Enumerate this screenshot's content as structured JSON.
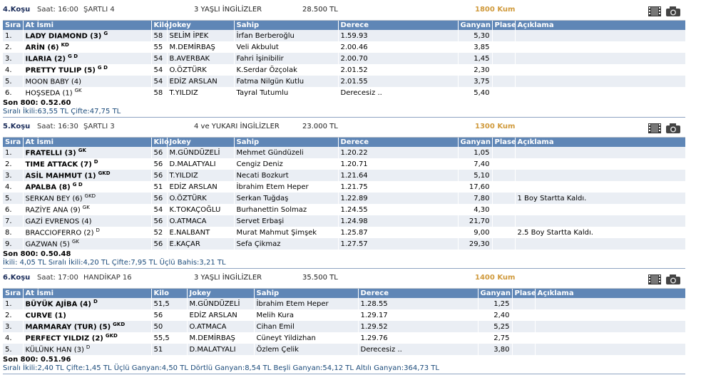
{
  "headers": [
    "Sıra",
    "At İsmi",
    "Kilo",
    "Jokey",
    "Sahip",
    "Derece",
    "Ganyan",
    "Plase",
    "Açıklama"
  ],
  "races": [
    {
      "no": "4.Koşu",
      "time": "Saat: 16:00",
      "cond": "ŞARTLI  4",
      "class": "3 YAŞLI İNGİLİZLER",
      "prize": "28.500 TL",
      "dist": "1800 Kum",
      "rows": [
        {
          "no": "1.",
          "horse": "LADY DIAMOND (3)",
          "hc": "G",
          "bold": true,
          "kilo": "58",
          "jockey": "SELİM İPEK",
          "owner": "İrfan Berberoğlu",
          "time": "1.59.93",
          "ganyan": "5,30",
          "plase": "",
          "note": ""
        },
        {
          "no": "2.",
          "horse": "ARİN (6)",
          "hc": "KD",
          "bold": true,
          "kilo": "55",
          "jockey": "M.DEMİRBAŞ",
          "owner": "Veli Akbulut",
          "time": "2.00.46",
          "ganyan": "3,85",
          "plase": "",
          "note": ""
        },
        {
          "no": "3.",
          "horse": "ILARIA (2)",
          "hc": "G D",
          "bold": true,
          "kilo": "54",
          "jockey": "B.AVERBAK",
          "owner": "Fahri İşinibilir",
          "time": "2.00.70",
          "ganyan": "1,45",
          "plase": "",
          "note": ""
        },
        {
          "no": "4.",
          "horse": "PRETTY TULIP (5)",
          "hc": "G D",
          "bold": true,
          "kilo": "54",
          "jockey": "O.ÖZTÜRK",
          "owner": "K.Serdar Özçolak",
          "time": "2.01.52",
          "ganyan": "2,30",
          "plase": "",
          "note": ""
        },
        {
          "no": "5.",
          "horse": "MOON BABY (4)",
          "hc": "",
          "bold": false,
          "kilo": "54",
          "jockey": "EDİZ ARSLAN",
          "owner": "Fatma Nilgün Kutlu",
          "time": "2.01.55",
          "ganyan": "3,75",
          "plase": "",
          "note": ""
        },
        {
          "no": "6.",
          "horse": "HOŞSEDA (1)",
          "hc": "GK",
          "bold": false,
          "kilo": "58",
          "jockey": "T.YILDIZ",
          "owner": "Tayral Tutumlu",
          "time": "Derecesiz ..",
          "ganyan": "5,40",
          "plase": "",
          "note": ""
        }
      ],
      "last800": "Son 800: 0.52.60",
      "bets": "Sıralı İkili:63,55 TL Çifte:47,75 TL"
    },
    {
      "no": "5.Koşu",
      "time": "Saat: 16:30",
      "cond": "ŞARTLI  3",
      "class": "4 ve YUKARI İNGİLİZLER",
      "prize": "23.000 TL",
      "dist": "1300 Kum",
      "rows": [
        {
          "no": "1.",
          "horse": "FRATELLI (3)",
          "hc": "GK",
          "bold": true,
          "kilo": "56",
          "jockey": "M.GÜNDÜZELİ",
          "owner": "Mehmet Gündüzeli",
          "time": "1.20.22",
          "ganyan": "1,05",
          "plase": "",
          "note": ""
        },
        {
          "no": "2.",
          "horse": "TIME ATTACK (7)",
          "hc": "D",
          "bold": true,
          "kilo": "56",
          "jockey": "D.MALATYALI",
          "owner": "Cengiz Deniz",
          "time": "1.20.71",
          "ganyan": "7,40",
          "plase": "",
          "note": ""
        },
        {
          "no": "3.",
          "horse": "ASİL MAHMUT (1)",
          "hc": "GKD",
          "bold": true,
          "kilo": "56",
          "jockey": "T.YILDIZ",
          "owner": "Necati Bozkurt",
          "time": "1.21.64",
          "ganyan": "5,10",
          "plase": "",
          "note": ""
        },
        {
          "no": "4.",
          "horse": "APALBA (8)",
          "hc": "G D",
          "bold": true,
          "kilo": "51",
          "jockey": "EDİZ ARSLAN",
          "owner": "İbrahim Etem Heper",
          "time": "1.21.75",
          "ganyan": "17,60",
          "plase": "",
          "note": ""
        },
        {
          "no": "5.",
          "horse": "SERKAN BEY (6)",
          "hc": "GKD",
          "bold": false,
          "kilo": "56",
          "jockey": "O.ÖZTÜRK",
          "owner": "Serkan Tuğdaş",
          "time": "1.22.89",
          "ganyan": "7,80",
          "plase": "",
          "note": "1 Boy Startta Kaldı."
        },
        {
          "no": "6.",
          "horse": "RAZİYE ANA (9)",
          "hc": "GK",
          "bold": false,
          "kilo": "54",
          "jockey": "K.TOKAÇOĞLU",
          "owner": "Burhanettin Solmaz",
          "time": "1.24.55",
          "ganyan": "4,30",
          "plase": "",
          "note": ""
        },
        {
          "no": "7.",
          "horse": "GAZİ EVRENOS (4)",
          "hc": "",
          "bold": false,
          "kilo": "56",
          "jockey": "O.ATMACA",
          "owner": "Servet Erbaşi",
          "time": "1.24.98",
          "ganyan": "21,70",
          "plase": "",
          "note": ""
        },
        {
          "no": "8.",
          "horse": "BRACCIOFERRO (2)",
          "hc": "D",
          "bold": false,
          "kilo": "52",
          "jockey": "E.NALBANT",
          "owner": "Murat Mahmut Şimşek",
          "time": "1.25.87",
          "ganyan": "9,00",
          "plase": "",
          "note": "2.5 Boy Startta Kaldı."
        },
        {
          "no": "9.",
          "horse": "GAZWAN (5)",
          "hc": "GK",
          "bold": false,
          "kilo": "56",
          "jockey": "E.KAÇAR",
          "owner": "Sefa Çikmaz",
          "time": "1.27.57",
          "ganyan": "29,30",
          "plase": "",
          "note": ""
        }
      ],
      "last800": "Son 800: 0.50.48",
      "bets": "İkili: 4,05 TL Sıralı İkili:4,20 TL Çifte:7,95 TL Üçlü Bahis:3,21 TL"
    },
    {
      "no": "6.Koşu",
      "time": "Saat: 17:00",
      "cond": "HANDİKAP  16",
      "class": "3 YAŞLI İNGİLİZLER",
      "prize": "35.500 TL",
      "dist": "1400 Kum",
      "rows": [
        {
          "no": "1.",
          "horse": "BÜYÜK AJİBA (4)",
          "hc": "D",
          "bold": true,
          "kilo": "51,5",
          "jockey": "M.GÜNDÜZELİ",
          "owner": "İbrahim Etem Heper",
          "time": "1.28.55",
          "ganyan": "1,25",
          "plase": "",
          "note": ""
        },
        {
          "no": "2.",
          "horse": "CURVE (1)",
          "hc": "",
          "bold": true,
          "kilo": "56",
          "jockey": "EDİZ ARSLAN",
          "owner": "Melih Kura",
          "time": "1.29.17",
          "ganyan": "2,40",
          "plase": "",
          "note": ""
        },
        {
          "no": "3.",
          "horse": "MARMARAY (TUR) (5)",
          "hc": "GKD",
          "bold": true,
          "kilo": "50",
          "jockey": "O.ATMACA",
          "owner": "Cihan Emil",
          "time": "1.29.52",
          "ganyan": "5,25",
          "plase": "",
          "note": ""
        },
        {
          "no": "4.",
          "horse": "PERFECT YILDIZ (2)",
          "hc": "GKD",
          "bold": true,
          "kilo": "55,5",
          "jockey": "M.DEMİRBAŞ",
          "owner": "Cüneyt Yildizhan",
          "time": "1.29.76",
          "ganyan": "2,75",
          "plase": "",
          "note": ""
        },
        {
          "no": "5.",
          "horse": "KÜLÜNK HAN (3)",
          "hc": "D",
          "bold": false,
          "kilo": "51",
          "jockey": "D.MALATYALI",
          "owner": "Özlem Çelik",
          "time": "Derecesiz ..",
          "ganyan": "3,80",
          "plase": "",
          "note": ""
        }
      ],
      "last800": "Son 800: 0.51.96",
      "bets": "Sıralı İkili:2,40 TL Çifte:1,45 TL Üçlü Ganyan:4,50 TL Dörtlü Ganyan:8,54 TL Beşli Ganyan:54,12 TL Altılı Ganyan:364,73 TL"
    }
  ]
}
